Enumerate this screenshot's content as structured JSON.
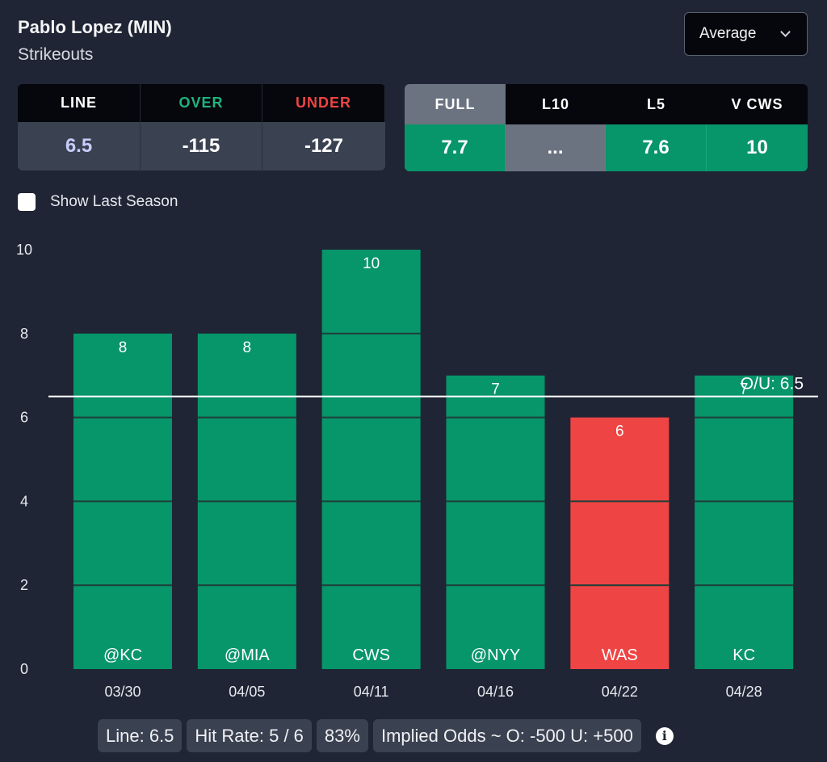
{
  "header": {
    "player": "Pablo Lopez (MIN)",
    "stat": "Strikeouts",
    "mode": "Average"
  },
  "odds": {
    "line_label": "LINE",
    "over_label": "OVER",
    "under_label": "UNDER",
    "line": "6.5",
    "over": "-115",
    "under": "-127",
    "colors": {
      "line_value": "#c7cdfb",
      "over": "#20b37d",
      "under": "#ef4444"
    }
  },
  "averages": {
    "full_label": "FULL",
    "l10_label": "L10",
    "l5_label": "L5",
    "vs_label": "V CWS",
    "full": "7.7",
    "l10": "...",
    "l5": "7.6",
    "vs": "10"
  },
  "toggle": {
    "label": "Show Last Season"
  },
  "chart_data": {
    "type": "bar",
    "categories": [
      "03/30",
      "04/05",
      "04/11",
      "04/16",
      "04/22",
      "04/28"
    ],
    "opponents": [
      "@KC",
      "@MIA",
      "CWS",
      "@NYY",
      "WAS",
      "KC"
    ],
    "values": [
      8,
      8,
      10,
      7,
      6,
      7
    ],
    "yticks": [
      0,
      2,
      4,
      6,
      8,
      10
    ],
    "ylim": [
      0,
      10
    ],
    "line": 6.5,
    "line_label": "O/U: 6.5",
    "colors": {
      "hit": "#07956a",
      "miss": "#ef4444",
      "segment": "#1f3f38",
      "line": "#ffffff"
    }
  },
  "summary": {
    "line": "Line: 6.5",
    "hit_rate": "Hit Rate: 5 / 6",
    "percent": "83%",
    "implied": "Implied Odds ~ O: -500 U: +500"
  }
}
